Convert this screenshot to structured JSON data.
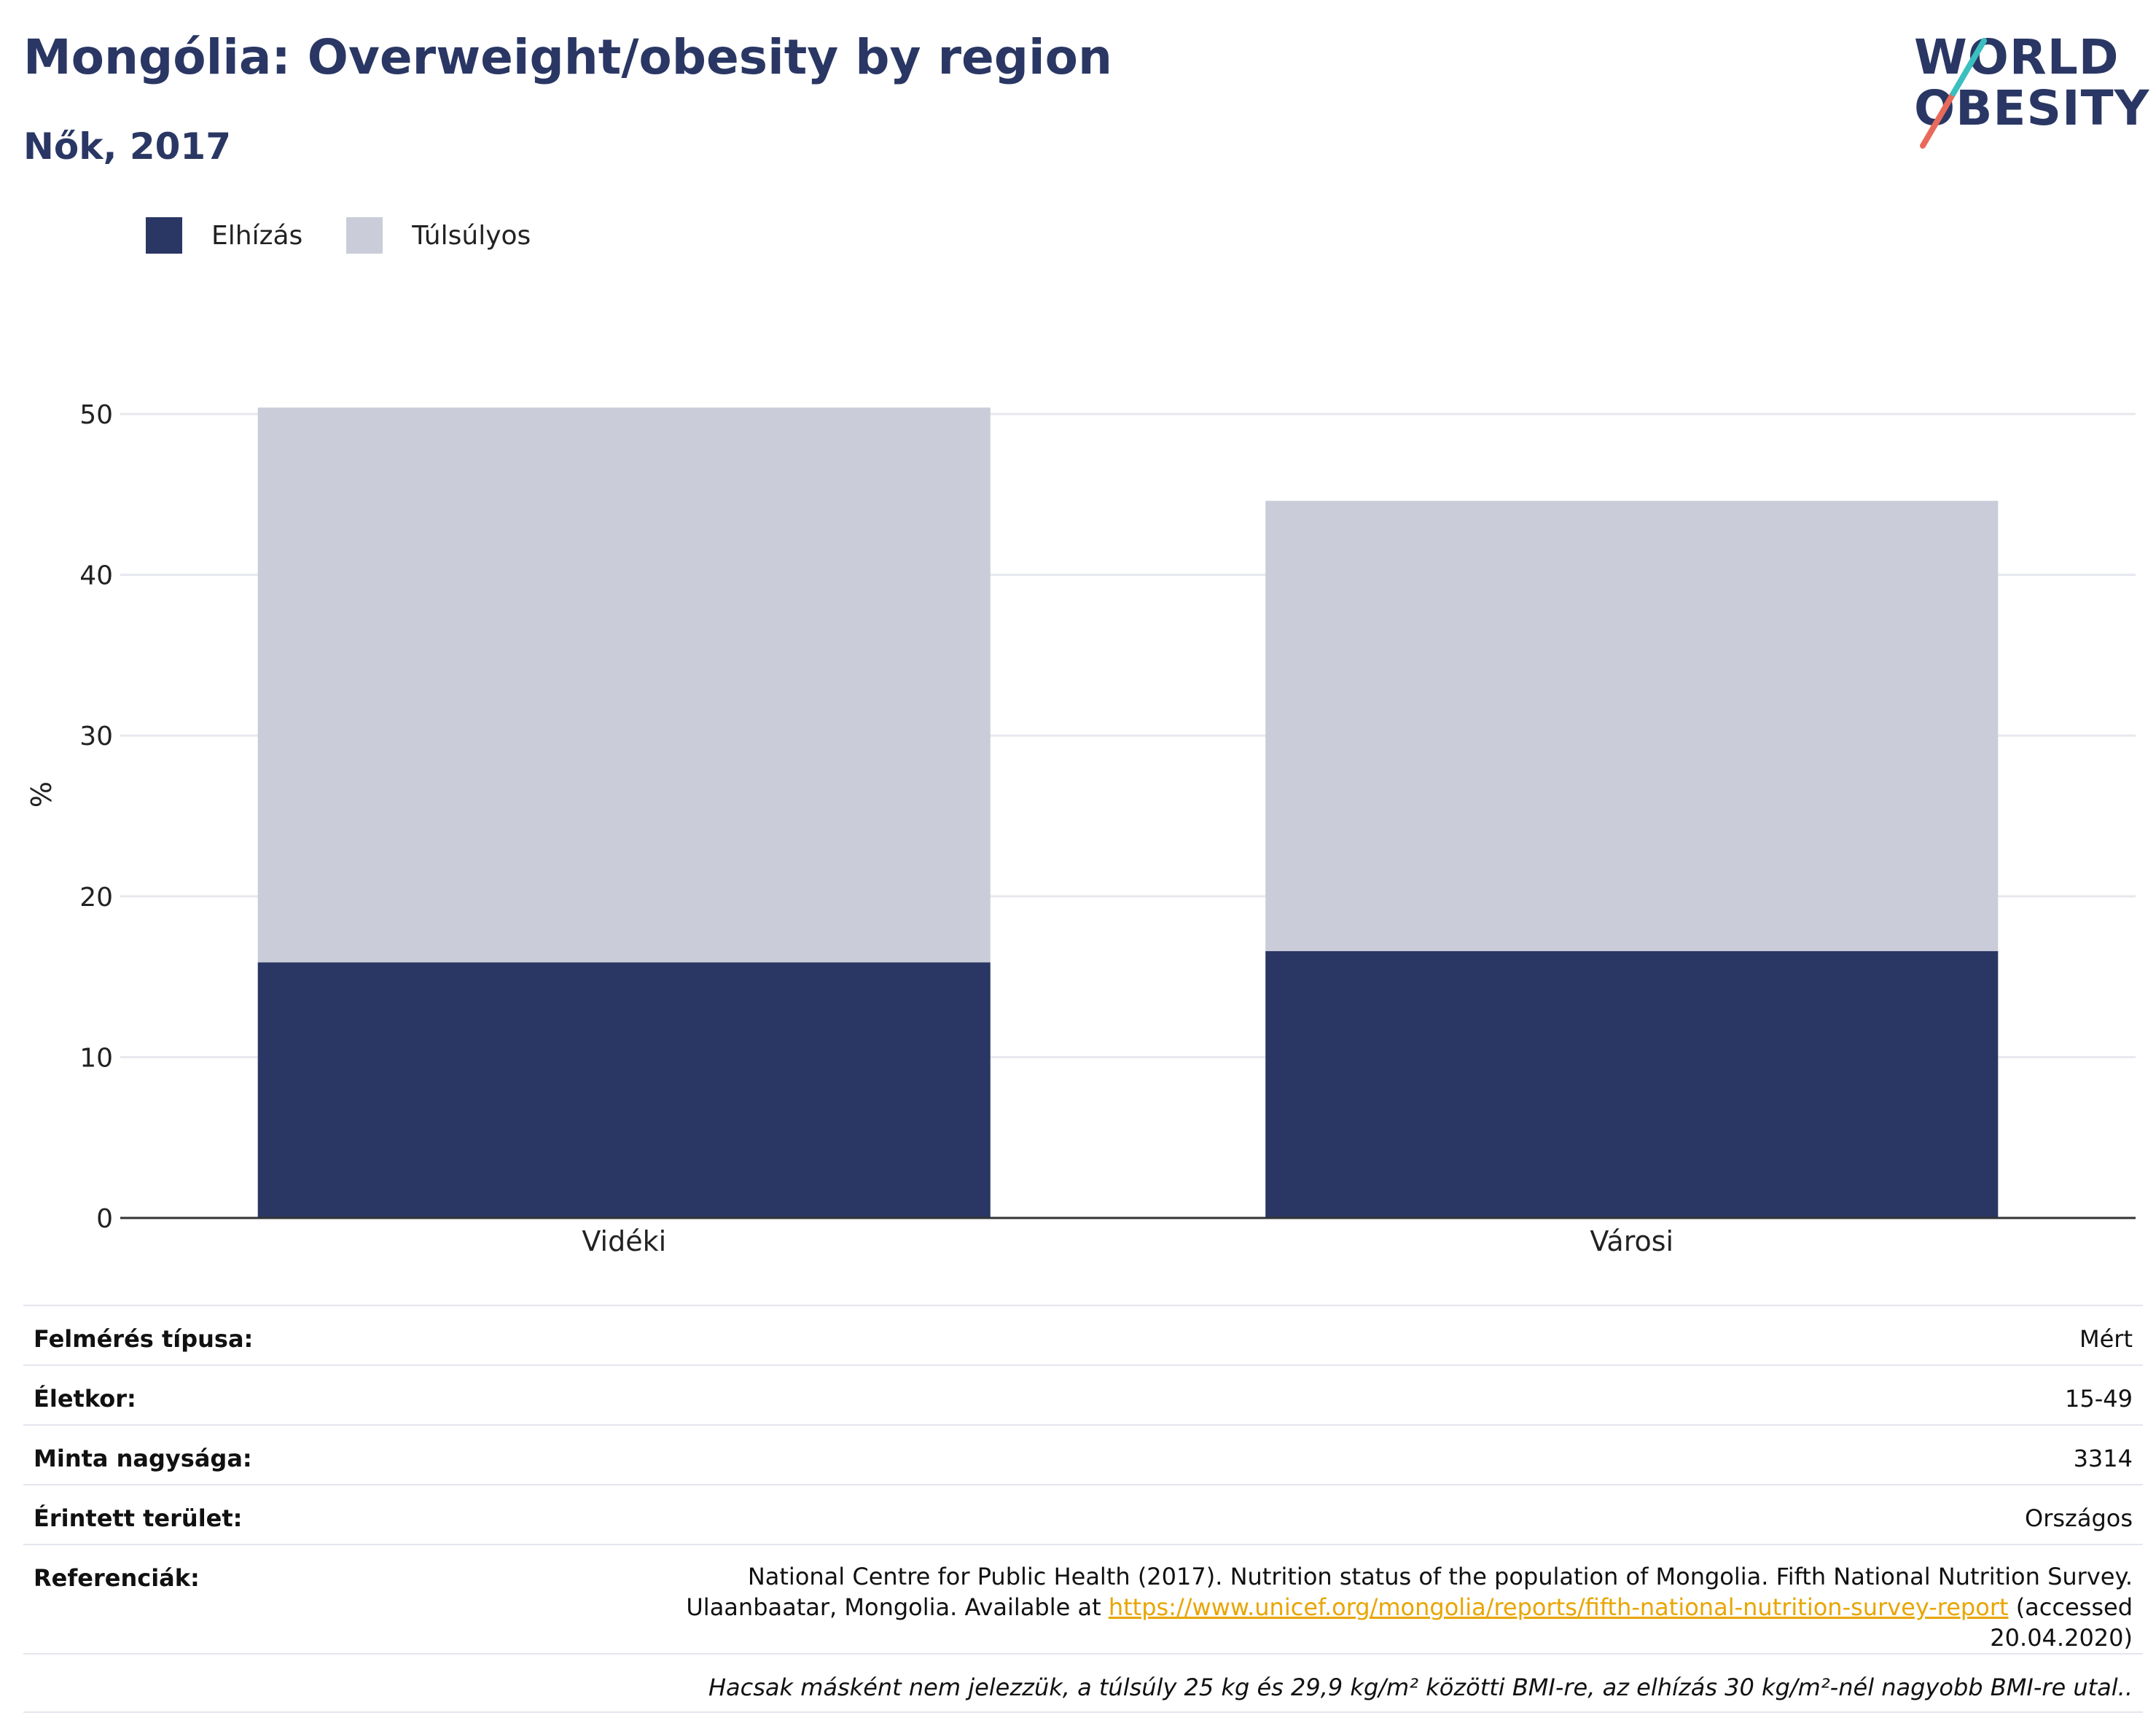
{
  "header": {
    "title": "Mongólia: Overweight/obesity by region",
    "subtitle": "Nők, 2017"
  },
  "logo": {
    "line1": "WORLD",
    "line2": "OBESITY"
  },
  "colors": {
    "obesity": "#2a3764",
    "overweight": "#cacdd9",
    "title": "#2a3764",
    "link": "#e8a500"
  },
  "chart_data": {
    "type": "bar",
    "stacked": true,
    "categories": [
      "Vidéki",
      "Városi"
    ],
    "series": [
      {
        "name": "Elhízás",
        "values": [
          15.9,
          16.6
        ]
      },
      {
        "name": "Túlsúlyos",
        "values": [
          34.5,
          28.0
        ]
      }
    ],
    "ylabel": "%",
    "xlabel": "",
    "ylim": [
      0,
      50
    ],
    "yticks": [
      "0",
      "10",
      "20",
      "30",
      "40",
      "50"
    ],
    "grid": true,
    "legend_position": "top-left"
  },
  "meta": {
    "survey_type_label": "Felmérés típusa:",
    "survey_type_value": "Mért",
    "age_label": "Életkor:",
    "age_value": "15-49",
    "sample_label": "Minta nagysága:",
    "sample_value": "3314",
    "area_label": "Érintett terület:",
    "area_value": "Országos",
    "ref_label": "Referenciák:",
    "ref_text_1": "National Centre for Public Health (2017). Nutrition status of the population of Mongolia. Fifth National Nutrition Survey. Ulaanbaatar, Mongolia. Available at ",
    "ref_link": "https://www.unicef.org/mongolia/reports/fifth-national-nutrition-survey-report",
    "ref_text_2": " (accessed 20.04.2020)",
    "note": "Hacsak másként nem jelezzük, a túlsúly 25 kg és 29,9 kg/m² közötti BMI-re, az elhízás 30 kg/m²-nél nagyobb BMI-re utal.."
  }
}
